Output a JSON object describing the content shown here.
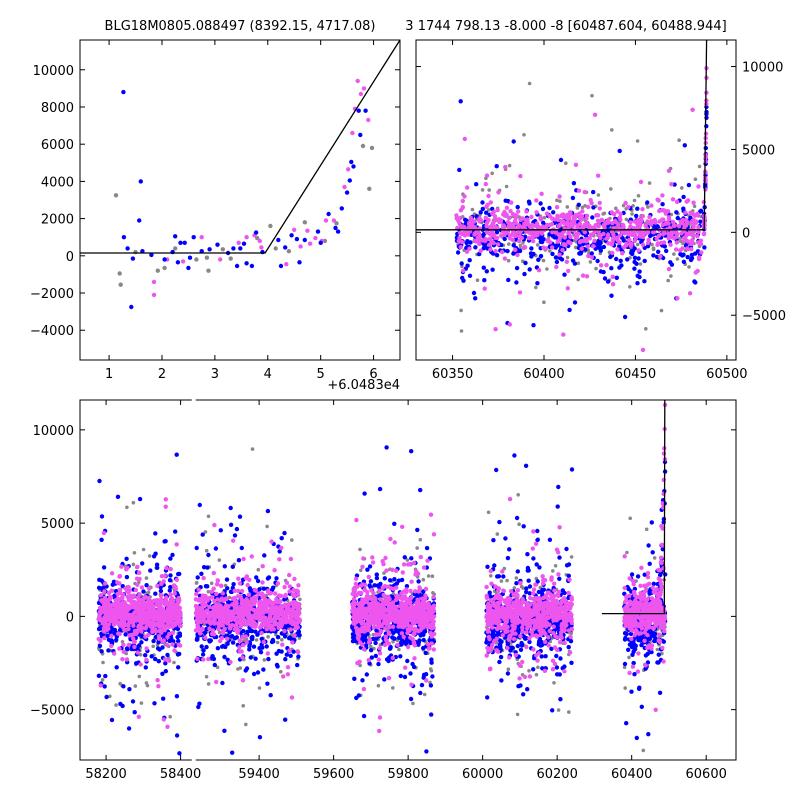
{
  "chart_data": [
    {
      "panel": "top-left",
      "type": "scatter",
      "title": "BLG18M0805.088497 (8392.15, 4717.08)",
      "x_offset_label": "+6.0483e4",
      "xlim": [
        0.45,
        6.5
      ],
      "ylim": [
        -5600,
        11600
      ],
      "xticks": [
        "1",
        "2",
        "3",
        "4",
        "5",
        "6"
      ],
      "xtick_values": [
        1,
        2,
        3,
        4,
        5,
        6
      ],
      "yticks": [
        "10000",
        "8000",
        "6000",
        "4000",
        "2000",
        "0",
        "−2000",
        "−4000"
      ],
      "ytick_values": [
        10000,
        8000,
        6000,
        4000,
        2000,
        0,
        -2000,
        -4000
      ],
      "model_line": [
        [
          0.45,
          150
        ],
        [
          3.95,
          150
        ],
        [
          6.5,
          11600
        ]
      ],
      "series": [
        {
          "color": "#0000ff",
          "points": [
            [
              1.27,
              8800
            ],
            [
              1.28,
              1000
            ],
            [
              1.35,
              400
            ],
            [
              1.45,
              -150
            ],
            [
              1.6,
              4000
            ],
            [
              1.57,
              1900
            ],
            [
              1.42,
              -2750
            ],
            [
              1.63,
              250
            ],
            [
              1.8,
              50
            ],
            [
              2.05,
              -200
            ],
            [
              2.2,
              200
            ],
            [
              2.25,
              1050
            ],
            [
              2.3,
              -350
            ],
            [
              2.35,
              700
            ],
            [
              2.43,
              700
            ],
            [
              2.5,
              -650
            ],
            [
              2.53,
              -100
            ],
            [
              2.6,
              1000
            ],
            [
              2.75,
              250
            ],
            [
              2.9,
              350
            ],
            [
              3.05,
              600
            ],
            [
              3.25,
              150
            ],
            [
              3.35,
              400
            ],
            [
              3.42,
              -550
            ],
            [
              3.48,
              400
            ],
            [
              3.55,
              650
            ],
            [
              3.6,
              -400
            ],
            [
              3.7,
              -550
            ],
            [
              3.78,
              1250
            ],
            [
              3.9,
              200
            ],
            [
              4.2,
              850
            ],
            [
              4.25,
              -550
            ],
            [
              4.33,
              450
            ],
            [
              4.45,
              1100
            ],
            [
              4.55,
              900
            ],
            [
              4.6,
              -350
            ],
            [
              4.7,
              850
            ],
            [
              4.95,
              1300
            ],
            [
              5.0,
              700
            ],
            [
              5.15,
              2250
            ],
            [
              5.28,
              1500
            ],
            [
              5.33,
              1300
            ],
            [
              5.4,
              2550
            ],
            [
              5.5,
              3400
            ],
            [
              5.55,
              4050
            ],
            [
              5.58,
              5050
            ],
            [
              5.62,
              4800
            ],
            [
              5.72,
              7800
            ],
            [
              5.75,
              6500
            ],
            [
              5.85,
              7800
            ]
          ]
        },
        {
          "color": "#ee55ee",
          "points": [
            [
              1.85,
              -2100
            ],
            [
              1.85,
              -1400
            ],
            [
              2.1,
              -200
            ],
            [
              2.4,
              -300
            ],
            [
              2.75,
              1000
            ],
            [
              3.1,
              -200
            ],
            [
              3.45,
              700
            ],
            [
              3.6,
              1000
            ],
            [
              3.75,
              1100
            ],
            [
              3.85,
              800
            ],
            [
              3.88,
              450
            ],
            [
              4.35,
              -450
            ],
            [
              4.5,
              1400
            ],
            [
              4.62,
              500
            ],
            [
              4.75,
              1350
            ],
            [
              4.8,
              650
            ],
            [
              4.9,
              950
            ],
            [
              5.02,
              800
            ],
            [
              5.1,
              1900
            ],
            [
              5.25,
              1900
            ],
            [
              5.45,
              3700
            ],
            [
              5.52,
              4650
            ],
            [
              5.6,
              6600
            ],
            [
              5.65,
              7900
            ],
            [
              5.7,
              9400
            ],
            [
              5.76,
              8700
            ],
            [
              5.82,
              9000
            ],
            [
              5.9,
              7300
            ]
          ]
        },
        {
          "color": "#888888",
          "points": [
            [
              1.13,
              3250
            ],
            [
              1.2,
              -950
            ],
            [
              1.22,
              -1550
            ],
            [
              1.5,
              200
            ],
            [
              1.92,
              -800
            ],
            [
              2.05,
              -650
            ],
            [
              2.25,
              400
            ],
            [
              2.65,
              -200
            ],
            [
              2.85,
              -100
            ],
            [
              2.88,
              -800
            ],
            [
              3.15,
              350
            ],
            [
              3.3,
              -150
            ],
            [
              3.8,
              950
            ],
            [
              4.05,
              1600
            ],
            [
              4.15,
              400
            ],
            [
              4.4,
              250
            ],
            [
              4.7,
              1800
            ],
            [
              5.08,
              800
            ],
            [
              5.3,
              1750
            ],
            [
              5.8,
              5900
            ],
            [
              5.92,
              3600
            ],
            [
              5.97,
              5800
            ]
          ]
        }
      ]
    },
    {
      "panel": "top-right",
      "type": "scatter",
      "title": "3 1744 798.13 -8.000 -8 [60487.604, 60488.944]",
      "xlim": [
        60330,
        60505
      ],
      "ylim": [
        -7700,
        11600
      ],
      "y_axis_side": "right",
      "xticks": [
        "60350",
        "60400",
        "60450",
        "60500"
      ],
      "xtick_values": [
        60350,
        60400,
        60450,
        60500
      ],
      "yticks": [
        "10000",
        "5000",
        "0",
        "−5000"
      ],
      "ytick_values": [
        10000,
        5000,
        0,
        -5000
      ],
      "model_line": [
        [
          60330,
          150
        ],
        [
          60487.6,
          150
        ],
        [
          60488.9,
          11600
        ]
      ]
    },
    {
      "panel": "bottom",
      "type": "scatter",
      "xlim": [
        58130,
        60680
      ],
      "ylim": [
        -7700,
        11600
      ],
      "xticks": [
        "58200",
        "58400",
        "59400",
        "59600",
        "59800",
        "60000",
        "60200",
        "60400",
        "60600"
      ],
      "xtick_values": [
        58200,
        58400,
        59400,
        59600,
        59800,
        60000,
        60200,
        60400,
        60600
      ],
      "yticks": [
        "10000",
        "5000",
        "0",
        "−5000"
      ],
      "ytick_values": [
        10000,
        5000,
        0,
        -5000
      ],
      "axis_break": [
        58430,
        59230
      ],
      "seasons": [
        [
          58180,
          58400
        ],
        [
          59230,
          59510
        ],
        [
          59650,
          59870
        ],
        [
          60010,
          60240
        ],
        [
          60380,
          60490
        ]
      ],
      "model_line": [
        [
          60320,
          150
        ],
        [
          60487.6,
          150
        ],
        [
          60488.9,
          11600
        ]
      ]
    }
  ],
  "colors": {
    "blue": "#0000ff",
    "pink": "#ee55ee",
    "gray": "#888888",
    "line": "#000000",
    "axes": "#000000"
  }
}
